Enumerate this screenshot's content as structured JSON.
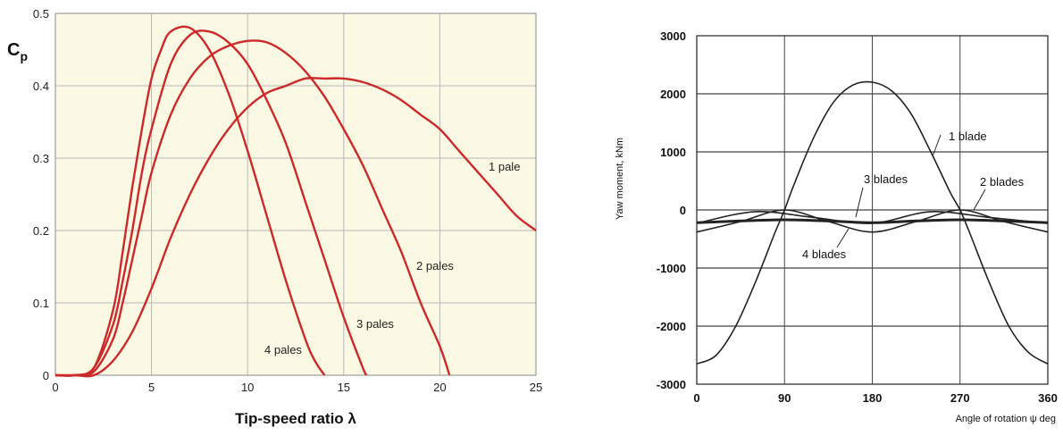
{
  "chart_data": [
    {
      "type": "line",
      "ylabel_main": "C",
      "ylabel_sub": "p",
      "xlabel": "Tip-speed ratio λ",
      "xlim": [
        0,
        25
      ],
      "ylim": [
        0,
        0.5
      ],
      "x_ticks": [
        0,
        5,
        10,
        15,
        20,
        25
      ],
      "y_ticks": [
        0,
        0.1,
        0.2,
        0.3,
        0.4,
        0.5
      ],
      "x_tick_labels": [
        "0",
        "5",
        "10",
        "15",
        "20",
        "25"
      ],
      "y_tick_labels": [
        "0",
        "0.1",
        "0.2",
        "0.3",
        "0.4",
        "0.5"
      ],
      "grid": true,
      "colors": {
        "line": "#cc2a2a",
        "plot_bg": "#fbf8e4",
        "grid": "#b8b8b8"
      },
      "series": [
        {
          "name": "1 pale",
          "x": [
            0,
            1,
            2,
            3,
            4,
            5,
            6,
            7,
            8,
            9,
            10,
            11,
            12,
            13,
            14,
            15,
            16,
            17,
            18,
            19,
            20,
            21,
            22,
            23,
            24,
            25
          ],
          "y": [
            0,
            0,
            0,
            0.02,
            0.06,
            0.12,
            0.19,
            0.25,
            0.3,
            0.34,
            0.37,
            0.39,
            0.4,
            0.41,
            0.41,
            0.41,
            0.405,
            0.395,
            0.38,
            0.36,
            0.34,
            0.31,
            0.28,
            0.25,
            0.22,
            0.2
          ]
        },
        {
          "name": "2 pales",
          "x": [
            0,
            1,
            2,
            3,
            3.5,
            4,
            4.5,
            5,
            6,
            7,
            8,
            9,
            10,
            11,
            12,
            13,
            14,
            15,
            16,
            17,
            18,
            19,
            20,
            20.5
          ],
          "y": [
            0,
            0,
            0.005,
            0.05,
            0.1,
            0.16,
            0.22,
            0.28,
            0.36,
            0.41,
            0.44,
            0.455,
            0.462,
            0.46,
            0.445,
            0.42,
            0.385,
            0.34,
            0.29,
            0.23,
            0.17,
            0.1,
            0.04,
            0
          ]
        },
        {
          "name": "3 pales",
          "x": [
            0,
            1,
            2,
            3,
            3.5,
            4,
            4.5,
            5,
            6,
            7,
            8,
            9,
            10,
            11,
            12,
            13,
            14,
            15,
            16,
            16.2
          ],
          "y": [
            0,
            0,
            0.01,
            0.07,
            0.13,
            0.2,
            0.28,
            0.34,
            0.43,
            0.47,
            0.475,
            0.46,
            0.43,
            0.38,
            0.32,
            0.24,
            0.16,
            0.08,
            0.01,
            0
          ]
        },
        {
          "name": "4 pales",
          "x": [
            0,
            1,
            2,
            3,
            3.5,
            4,
            4.5,
            5,
            5.5,
            6,
            7,
            8,
            9,
            10,
            11,
            12,
            13,
            13.5,
            14
          ],
          "y": [
            0,
            0,
            0.01,
            0.09,
            0.17,
            0.26,
            0.34,
            0.41,
            0.45,
            0.475,
            0.48,
            0.45,
            0.39,
            0.31,
            0.22,
            0.13,
            0.05,
            0.02,
            0
          ]
        }
      ],
      "labels": [
        "1 pale",
        "2 pales",
        "3 pales",
        "4 pales"
      ]
    },
    {
      "type": "line",
      "ylabel": "Yaw moment, kNm",
      "xlabel": "Angle of rotation ψ deg",
      "xlim": [
        0,
        360
      ],
      "ylim": [
        -3000,
        3000
      ],
      "x_ticks": [
        0,
        90,
        180,
        270,
        360
      ],
      "y_ticks": [
        -3000,
        -2000,
        -1000,
        0,
        1000,
        2000,
        3000
      ],
      "x_tick_labels": [
        "0",
        "90",
        "180",
        "270",
        "360"
      ],
      "y_tick_labels": [
        "-3000",
        "-2000",
        "-1000",
        "0",
        "1000",
        "2000",
        "3000"
      ],
      "grid": true,
      "colors": {
        "line": "#222222",
        "grid": "#444444"
      },
      "series": [
        {
          "name": "1 blade",
          "x": [
            0,
            20,
            40,
            60,
            80,
            90,
            100,
            120,
            140,
            160,
            180,
            200,
            220,
            240,
            260,
            270,
            280,
            300,
            320,
            340,
            360
          ],
          "y": [
            -2650,
            -2500,
            -2000,
            -1250,
            -400,
            0,
            450,
            1250,
            1850,
            2150,
            2200,
            2050,
            1650,
            1000,
            300,
            0,
            -400,
            -1250,
            -2000,
            -2450,
            -2650
          ]
        },
        {
          "name": "2 blades",
          "x": [
            0,
            45,
            90,
            135,
            180,
            225,
            270,
            315,
            360
          ],
          "y": [
            -380,
            -200,
            0,
            -200,
            -380,
            -200,
            0,
            -200,
            -380
          ]
        },
        {
          "name": "3 blades",
          "x": [
            0,
            60,
            120,
            180,
            240,
            300,
            360
          ],
          "y": [
            -230,
            -30,
            -130,
            -230,
            -30,
            -130,
            -230
          ]
        },
        {
          "name": "4 blades",
          "x": [
            0,
            45,
            90,
            135,
            180,
            225,
            270,
            315,
            360
          ],
          "y": [
            -220,
            -190,
            -170,
            -190,
            -220,
            -190,
            -170,
            -190,
            -220
          ]
        }
      ],
      "labels": [
        "1 blade",
        "2 blades",
        "3 blades",
        "4 blades"
      ]
    }
  ]
}
